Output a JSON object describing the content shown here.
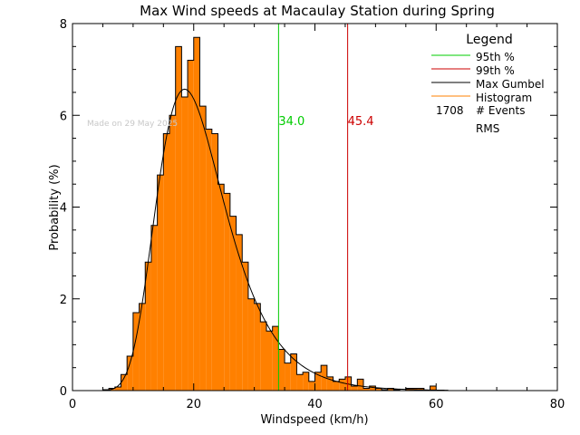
{
  "chart_data": {
    "type": "bar",
    "title": "Max Wind speeds at Macaulay Station during Spring",
    "xlabel": "Windspeed (km/h)",
    "ylabel": "Probability  (%)",
    "xlim": [
      0,
      80
    ],
    "ylim": [
      0,
      8
    ],
    "xticks": [
      "0",
      "20",
      "40",
      "60",
      "80"
    ],
    "yticks": [
      "0",
      "2",
      "4",
      "6",
      "8"
    ],
    "grid": false,
    "watermark": "Made on 29 May 2025",
    "legend": {
      "placement": "top-right",
      "title": "Legend",
      "entries": [
        {
          "label": "95th %",
          "color": "#00cc00"
        },
        {
          "label": "99th %",
          "color": "#cc0000"
        },
        {
          "label": "Max Gumbel",
          "color": "#000000"
        },
        {
          "label": "Histogram",
          "color": "#ff8000"
        }
      ],
      "events_count": "1708",
      "events_label": "# Events",
      "rms_label": "RMS"
    },
    "percentiles": [
      {
        "name": "95th %",
        "value": 34.0,
        "label": "34.0",
        "color": "#00cc00"
      },
      {
        "name": "99th %",
        "value": 45.4,
        "label": "45.4",
        "color": "#cc0000"
      }
    ],
    "histogram": {
      "color": "#ff8000",
      "bin_width": 1,
      "bins": [
        {
          "x": 5,
          "y": 0.02
        },
        {
          "x": 6,
          "y": 0.05
        },
        {
          "x": 7,
          "y": 0.08
        },
        {
          "x": 8,
          "y": 0.35
        },
        {
          "x": 9,
          "y": 0.75
        },
        {
          "x": 10,
          "y": 1.7
        },
        {
          "x": 11,
          "y": 1.9
        },
        {
          "x": 12,
          "y": 2.8
        },
        {
          "x": 13,
          "y": 3.6
        },
        {
          "x": 14,
          "y": 4.7
        },
        {
          "x": 15,
          "y": 5.6
        },
        {
          "x": 16,
          "y": 6.0
        },
        {
          "x": 17,
          "y": 7.5
        },
        {
          "x": 18,
          "y": 6.4
        },
        {
          "x": 19,
          "y": 7.2
        },
        {
          "x": 20,
          "y": 7.7
        },
        {
          "x": 21,
          "y": 6.2
        },
        {
          "x": 22,
          "y": 5.7
        },
        {
          "x": 23,
          "y": 5.6
        },
        {
          "x": 24,
          "y": 4.5
        },
        {
          "x": 25,
          "y": 4.3
        },
        {
          "x": 26,
          "y": 3.8
        },
        {
          "x": 27,
          "y": 3.4
        },
        {
          "x": 28,
          "y": 2.8
        },
        {
          "x": 29,
          "y": 2.0
        },
        {
          "x": 30,
          "y": 1.9
        },
        {
          "x": 31,
          "y": 1.5
        },
        {
          "x": 32,
          "y": 1.3
        },
        {
          "x": 33,
          "y": 1.4
        },
        {
          "x": 34,
          "y": 0.9
        },
        {
          "x": 35,
          "y": 0.6
        },
        {
          "x": 36,
          "y": 0.8
        },
        {
          "x": 37,
          "y": 0.35
        },
        {
          "x": 38,
          "y": 0.4
        },
        {
          "x": 39,
          "y": 0.2
        },
        {
          "x": 40,
          "y": 0.4
        },
        {
          "x": 41,
          "y": 0.55
        },
        {
          "x": 42,
          "y": 0.3
        },
        {
          "x": 43,
          "y": 0.2
        },
        {
          "x": 44,
          "y": 0.25
        },
        {
          "x": 45,
          "y": 0.3
        },
        {
          "x": 46,
          "y": 0.1
        },
        {
          "x": 47,
          "y": 0.25
        },
        {
          "x": 48,
          "y": 0.05
        },
        {
          "x": 49,
          "y": 0.1
        },
        {
          "x": 50,
          "y": 0.05
        },
        {
          "x": 51,
          "y": 0.02
        },
        {
          "x": 52,
          "y": 0.05
        },
        {
          "x": 53,
          "y": 0.02
        },
        {
          "x": 54,
          "y": 0.0
        },
        {
          "x": 55,
          "y": 0.05
        },
        {
          "x": 56,
          "y": 0.05
        },
        {
          "x": 57,
          "y": 0.05
        },
        {
          "x": 58,
          "y": 0.0
        },
        {
          "x": 59,
          "y": 0.1
        }
      ]
    },
    "gumbel_fit": {
      "color": "#000000",
      "location": 18.5,
      "scale": 5.6,
      "x_range": [
        5,
        62
      ]
    }
  }
}
